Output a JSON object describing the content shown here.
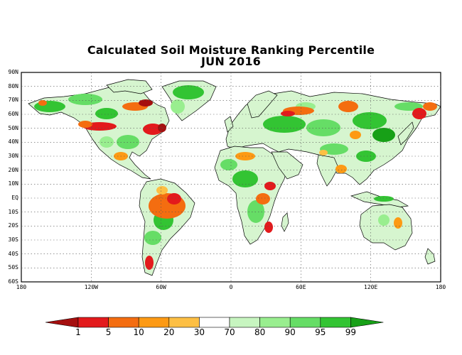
{
  "title": {
    "line1": "Calculated Soil Moisture Ranking Percentile",
    "line2": "JUN 2016"
  },
  "axes": {
    "lat_labels": [
      "90N",
      "80N",
      "70N",
      "60N",
      "50N",
      "40N",
      "30N",
      "20N",
      "10N",
      "EQ",
      "10S",
      "20S",
      "30S",
      "40S",
      "50S",
      "60S"
    ],
    "lat_values": [
      90,
      80,
      70,
      60,
      50,
      40,
      30,
      20,
      10,
      0,
      -10,
      -20,
      -30,
      -40,
      -50,
      -60
    ],
    "lon_labels": [
      "180",
      "120W",
      "60W",
      "0",
      "60E",
      "120E",
      "180"
    ],
    "lon_values": [
      -180,
      -120,
      -60,
      0,
      60,
      120,
      180
    ],
    "lat_range": [
      -60,
      90
    ],
    "lon_range": [
      -180,
      180
    ],
    "grid": true,
    "grid_style": "dotted"
  },
  "colorbar": {
    "labels": [
      "1",
      "5",
      "10",
      "20",
      "30",
      "70",
      "80",
      "90",
      "95",
      "99"
    ],
    "colors": [
      "#a50f0f",
      "#e31a1c",
      "#f46d10",
      "#fd9a14",
      "#fdbf44",
      "#ffffff",
      "#c7f5c0",
      "#99ee8f",
      "#66dd66",
      "#33c433",
      "#17a017"
    ],
    "low_arrow_color": "#a50f0f",
    "high_arrow_color": "#17a017"
  }
}
